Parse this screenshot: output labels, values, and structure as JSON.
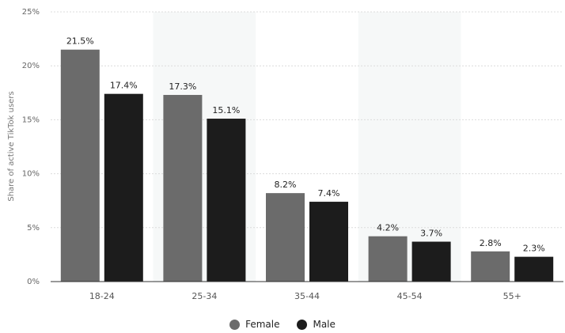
{
  "chart_data": {
    "type": "bar",
    "title": "",
    "xlabel": "",
    "ylabel": "Share of active TikTok users",
    "categories": [
      "18-24",
      "25-34",
      "35-44",
      "45-54",
      "55+"
    ],
    "series": [
      {
        "name": "Female",
        "color": "#6b6b6b",
        "values": [
          21.5,
          17.3,
          8.2,
          4.2,
          2.8
        ],
        "labels": [
          "21.5%",
          "17.3%",
          "8.2%",
          "4.2%",
          "2.8%"
        ]
      },
      {
        "name": "Male",
        "color": "#1c1c1c",
        "values": [
          17.4,
          15.1,
          7.4,
          3.7,
          2.3
        ],
        "labels": [
          "17.4%",
          "15.1%",
          "7.4%",
          "3.7%",
          "2.3%"
        ]
      }
    ],
    "ylim": [
      0,
      25
    ],
    "yticks": [
      0,
      5,
      10,
      15,
      20,
      25
    ],
    "ytick_labels": [
      "0%",
      "5%",
      "10%",
      "15%",
      "20%",
      "25%"
    ],
    "grid": true,
    "legend_position": "bottom-center"
  }
}
